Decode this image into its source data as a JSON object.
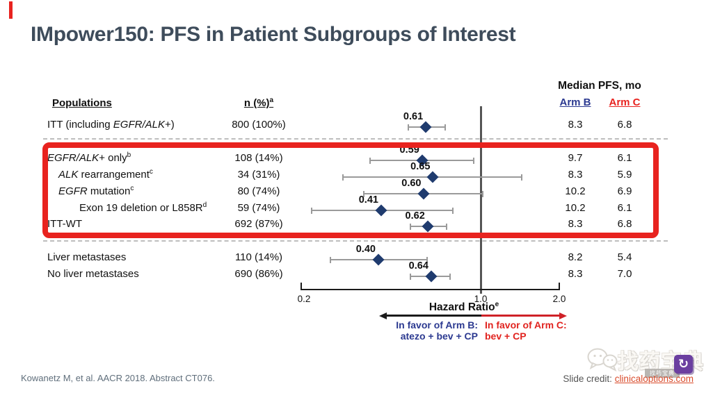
{
  "slide": {
    "title": "IMpower150: PFS in Patient Subgroups of Interest"
  },
  "table": {
    "col_populations": "Populations",
    "col_n": "n (%)",
    "col_n_sup": "a",
    "col_median": "Median PFS, mo",
    "col_arm_b": "Arm B",
    "col_arm_c": "Arm C"
  },
  "chart_data": {
    "type": "scatter",
    "subtype": "forest-plot",
    "x_scale": "log",
    "xlim": [
      0.2,
      2.0
    ],
    "x_ticks": [
      0.2,
      1.0,
      2.0
    ],
    "reference_line": 1.0,
    "xlabel": "Hazard Ratio",
    "xlabel_sup": "e",
    "rows": [
      {
        "label": "ITT (including EGFR/ALK+)",
        "segments": [
          {
            "t": "ITT (including "
          },
          {
            "t": "EGFR/ALK",
            "i": true
          },
          {
            "t": "+)"
          }
        ],
        "level": 0,
        "n": "800 (100%)",
        "hr": 0.61,
        "hr_label": "0.61",
        "ci": [
          0.52,
          0.73
        ],
        "arm_b": "8.3",
        "arm_c": "6.8",
        "highlighted": false
      },
      {
        "label": "EGFR/ALK+ only(b)",
        "segments": [
          {
            "t": "EGFR/ALK",
            "i": true
          },
          {
            "t": "+ only"
          },
          {
            "t": "b",
            "s": true
          }
        ],
        "level": 0,
        "n": "108 (14%)",
        "hr": 0.59,
        "hr_label": "0.59",
        "ci": [
          0.37,
          0.94
        ],
        "arm_b": "9.7",
        "arm_c": "6.1",
        "highlighted": true
      },
      {
        "label": "ALK rearrangement(c)",
        "segments": [
          {
            "t": "ALK",
            "i": true
          },
          {
            "t": " rearrangement"
          },
          {
            "t": "c",
            "s": true
          }
        ],
        "level": 1,
        "n": "34 (31%)",
        "hr": 0.65,
        "hr_label": "0.65",
        "ci": [
          0.29,
          1.44
        ],
        "arm_b": "8.3",
        "arm_c": "5.9",
        "highlighted": true
      },
      {
        "label": "EGFR mutation(c)",
        "segments": [
          {
            "t": "EGFR",
            "i": true
          },
          {
            "t": " mutation"
          },
          {
            "t": "c",
            "s": true
          }
        ],
        "level": 1,
        "n": "80 (74%)",
        "hr": 0.6,
        "hr_label": "0.60",
        "ci": [
          0.35,
          1.02
        ],
        "arm_b": "10.2",
        "arm_c": "6.9",
        "highlighted": true
      },
      {
        "label": "Exon 19 deletion or L858R(d)",
        "segments": [
          {
            "t": "Exon 19 deletion or L858R"
          },
          {
            "t": "d",
            "s": true
          }
        ],
        "level": 2,
        "n": "59 (74%)",
        "hr": 0.41,
        "hr_label": "0.41",
        "ci": [
          0.22,
          0.78
        ],
        "arm_b": "10.2",
        "arm_c": "6.1",
        "highlighted": true
      },
      {
        "label": "ITT-WT",
        "segments": [
          {
            "t": "ITT-WT"
          }
        ],
        "level": 0,
        "n": "692 (87%)",
        "hr": 0.62,
        "hr_label": "0.62",
        "ci": [
          0.53,
          0.74
        ],
        "arm_b": "8.3",
        "arm_c": "6.8",
        "highlighted": true
      },
      {
        "label": "Liver metastases",
        "segments": [
          {
            "t": "Liver metastases"
          }
        ],
        "level": 0,
        "n": "110 (14%)",
        "hr": 0.4,
        "hr_label": "0.40",
        "ci": [
          0.26,
          0.62
        ],
        "arm_b": "8.2",
        "arm_c": "5.4",
        "highlighted": false
      },
      {
        "label": "No liver metastases",
        "segments": [
          {
            "t": "No liver metastases"
          }
        ],
        "level": 0,
        "n": "690 (86%)",
        "hr": 0.64,
        "hr_label": "0.64",
        "ci": [
          0.53,
          0.76
        ],
        "arm_b": "8.3",
        "arm_c": "7.0",
        "highlighted": false
      }
    ]
  },
  "axis": {
    "tick_labels": [
      "0.2",
      "1.0",
      "2.0"
    ],
    "title": "Hazard Ratio",
    "title_sup": "e"
  },
  "favor": {
    "left_title": "In favor of Arm B:",
    "left_sub": "atezo + bev + CP",
    "right_title": "In favor of Arm C:",
    "right_sub": "bev + CP"
  },
  "footer": {
    "citation": "Kowanetz M, et al. AACR 2018. Abstract CT076.",
    "credit_label": "Slide credit: ",
    "credit_link": "clinicaloptions.com"
  },
  "watermark": {
    "text": "找药宝典",
    "band_text": "找药宝典",
    "badge_glyph": "↻"
  },
  "colors": {
    "title_slate": "#3e4c5b",
    "arm_b_blue": "#2b3990",
    "arm_c_red": "#e8231f",
    "highlight_red": "#e8231f",
    "diamond_navy": "#1f3b6e",
    "link_orange": "#d94b2b",
    "favor_right_red": "#cf2127",
    "badge_purple": "#6b3fa0"
  }
}
